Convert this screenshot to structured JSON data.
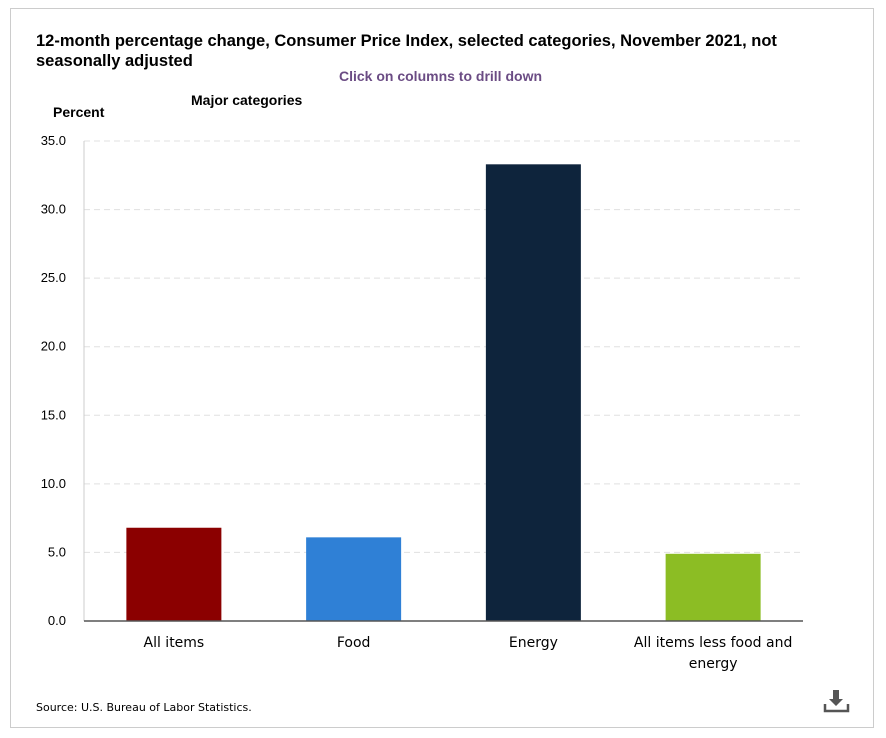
{
  "chart_data": {
    "type": "bar",
    "title": "12-month percentage change, Consumer Price Index, selected categories, November 2021, not seasonally adjusted",
    "subtitle": "Major categories",
    "ylabel": "Percent",
    "xlabel": "",
    "ylim": [
      0,
      35
    ],
    "yticks": [
      "0.0",
      "5.0",
      "10.0",
      "15.0",
      "20.0",
      "25.0",
      "30.0",
      "35.0"
    ],
    "ytick_values": [
      0,
      5,
      10,
      15,
      20,
      25,
      30,
      35
    ],
    "categories": [
      [
        "All items"
      ],
      [
        "Food"
      ],
      [
        "Energy"
      ],
      [
        "All items less food and",
        "energy"
      ]
    ],
    "values": [
      6.8,
      6.1,
      33.3,
      4.9
    ],
    "colors": [
      "#8b0000",
      "#2f80d6",
      "#0e243c",
      "#8cbd24"
    ],
    "grid": true,
    "legend": "none"
  },
  "hint": "Click on columns to drill down",
  "source": "Source: U.S. Bureau of Labor Statistics.",
  "download_icon": "download-icon"
}
